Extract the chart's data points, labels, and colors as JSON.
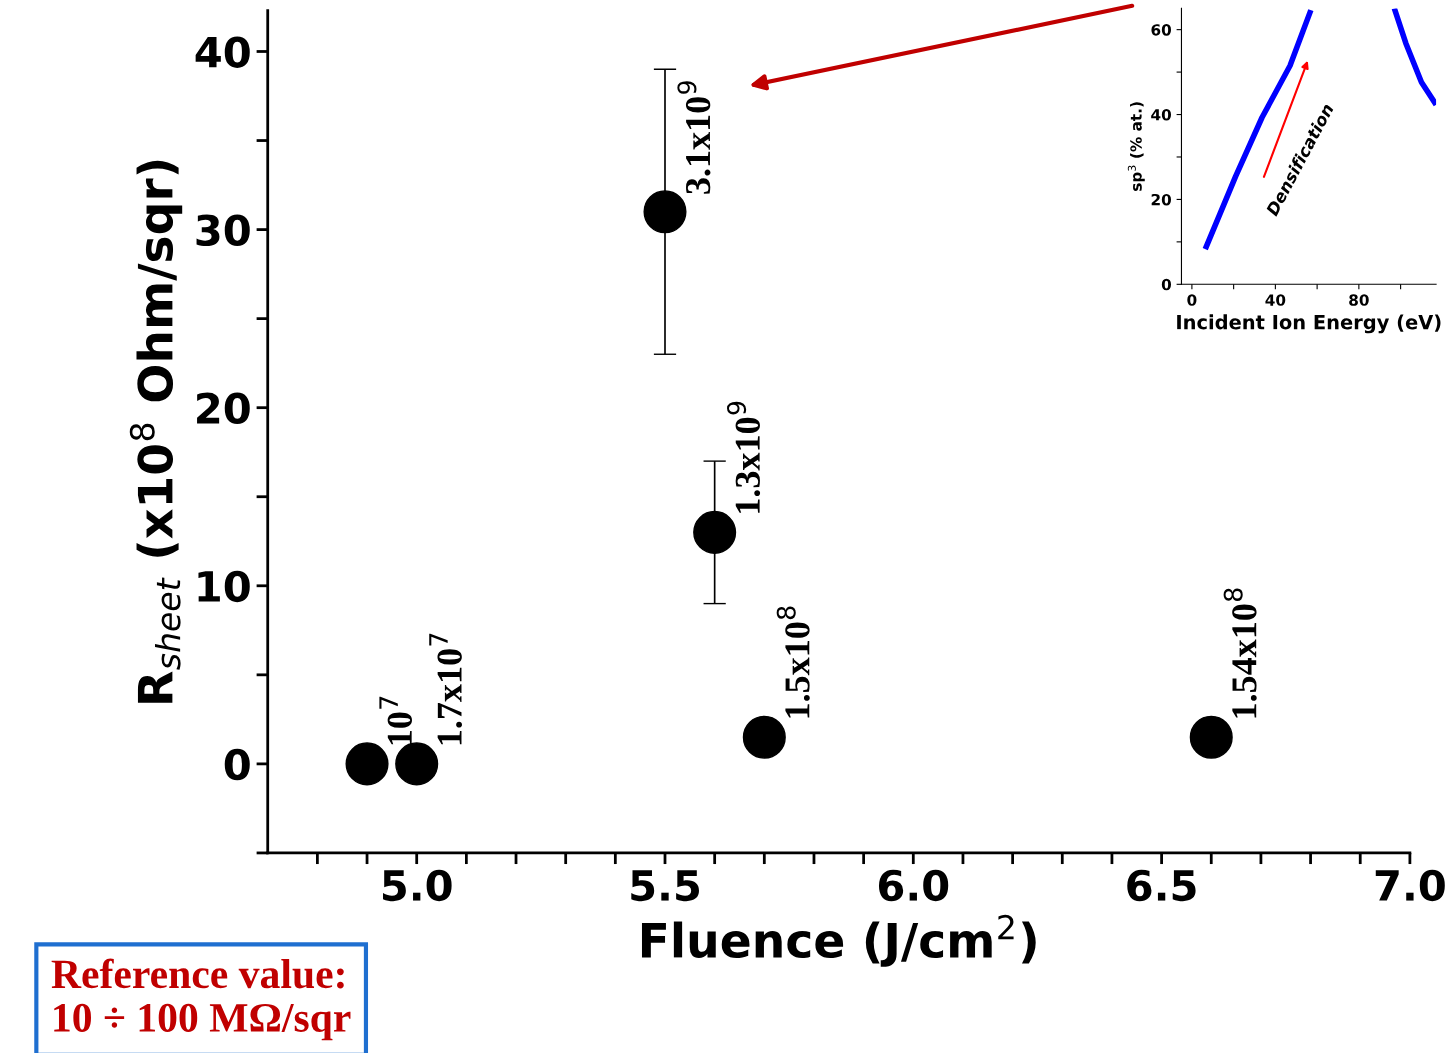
{
  "chart_data": [
    {
      "type": "scatter",
      "xlabel": "Fluence (J/cm$^{2}$)",
      "ylabel": "R$_{sheet}$ (x10$^{8}$ Ohm/sqr)",
      "x": [
        4.9,
        5.0,
        5.5,
        5.6,
        5.7,
        6.6
      ],
      "series": [
        {
          "color": "#000000",
          "values": [
            0,
            0,
            31,
            13,
            1.5,
            1.5
          ],
          "errors": [
            null,
            null,
            [
              23,
              39
            ],
            [
              9,
              17
            ],
            null,
            null
          ]
        }
      ],
      "marker": "circle",
      "xlim": [
        4.7,
        7.0
      ],
      "xticks": [
        {
          "value": 4.8,
          "label": null
        },
        {
          "value": 4.9,
          "label": null
        },
        {
          "value": 5.0,
          "label": "5.0"
        },
        {
          "value": 5.1,
          "label": null
        },
        {
          "value": 5.2,
          "label": null
        },
        {
          "value": 5.3,
          "label": null
        },
        {
          "value": 5.4,
          "label": null
        },
        5.5,
        {
          "value": 5.6,
          "label": null
        },
        {
          "value": 5.7,
          "label": null
        },
        {
          "value": 5.8,
          "label": null
        },
        {
          "value": 5.9,
          "label": null
        },
        {
          "value": 6.0,
          "label": "6.0"
        },
        {
          "value": 6.1,
          "label": null
        },
        {
          "value": 6.2,
          "label": null
        },
        {
          "value": 6.3,
          "label": null
        },
        {
          "value": 6.4,
          "label": null
        },
        6.5,
        {
          "value": 6.6,
          "label": null
        },
        {
          "value": 6.7,
          "label": null
        },
        {
          "value": 6.8,
          "label": null
        },
        {
          "value": 6.9,
          "label": null
        },
        {
          "value": 7.0,
          "label": "7.0"
        }
      ],
      "ylim": [
        -5,
        42.3
      ],
      "yticks": [
        {
          "value": -5,
          "label": null
        },
        0,
        {
          "value": 5,
          "label": null
        },
        10,
        {
          "value": 15,
          "label": null
        },
        20,
        {
          "value": 25,
          "label": null
        },
        30,
        {
          "value": 35,
          "label": null
        },
        40
      ],
      "grid": false,
      "annotations": [
        {
          "text": "10$^{7}$",
          "x": 4.9,
          "y": 0
        },
        {
          "text": "1.7x10$^{7}$",
          "x": 5.0,
          "y": 0
        },
        {
          "text": "3.1x10$^{9}$",
          "x": 5.5,
          "y": 31
        },
        {
          "text": "1.3x10$^{9}$",
          "x": 5.6,
          "y": 13
        },
        {
          "text": "1.5x10$^{8}$",
          "x": 5.7,
          "y": 1.5
        },
        {
          "text": "1.54x10$^{8}$",
          "x": 6.6,
          "y": 1.5
        },
        "Reference value:",
        "10 ÷ 100 MΩ/sqr"
      ]
    },
    {
      "type": "line",
      "xlabel": "Incident Ion Energy (eV)",
      "ylabel": "sp$^{3}$ (% at.)",
      "series": [
        {
          "color": "#0000ff",
          "x": [
            6.4,
            21,
            33.6,
            47,
            57,
            null,
            97,
            102.5,
            110,
            117
          ],
          "values": [
            8.3,
            25.5,
            39.3,
            51.5,
            64.6,
            null,
            65,
            56.8,
            47.6,
            42.3
          ]
        }
      ],
      "xlim": [
        -5,
        117
      ],
      "xticks": [
        0,
        {
          "value": 20,
          "label": null
        },
        40,
        {
          "value": 60,
          "label": null
        },
        80,
        {
          "value": 100,
          "label": null
        }
      ],
      "ylim": [
        0,
        65
      ],
      "yticks": [
        0,
        {
          "value": 10,
          "label": null
        },
        20,
        {
          "value": 30,
          "label": null
        },
        40,
        {
          "value": 50,
          "label": null
        },
        60
      ],
      "grid": false,
      "marker": "none",
      "line_style": "solid",
      "annotations": [
        "Densification"
      ]
    }
  ]
}
